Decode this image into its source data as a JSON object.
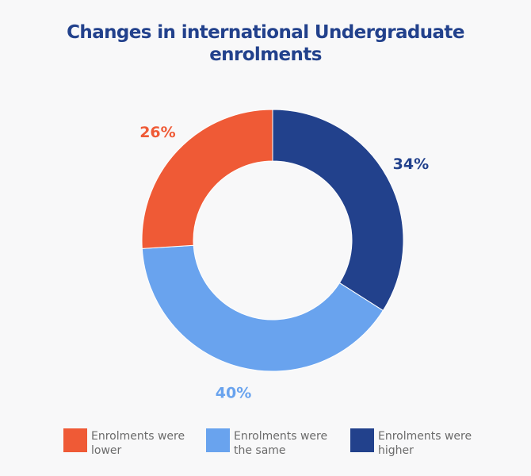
{
  "chart_data": {
    "type": "pie",
    "title": "Changes in international Undergraduate enrolments",
    "title_lines": [
      "Changes in international Undergraduate",
      "enrolments"
    ],
    "slices": [
      {
        "label": "Enrolments were higher",
        "legend_lines": "Enrolments were\nhigher",
        "value": 34,
        "display": "34%",
        "color": "#22418c"
      },
      {
        "label": "Enrolments were the same",
        "legend_lines": "Enrolments were\nthe same",
        "value": 40,
        "display": "40%",
        "color": "#69a3ee"
      },
      {
        "label": "Enrolments were lower",
        "legend_lines": "Enrolments were\nlower",
        "value": 26,
        "display": "26%",
        "color": "#ef5a36"
      }
    ],
    "legend_order": [
      "Enrolments were lower",
      "Enrolments were the same",
      "Enrolments were higher"
    ],
    "legend_position": "bottom",
    "donut": true,
    "start": "top-clockwise"
  },
  "colors": {
    "title": "#22418c",
    "background": "#f8f8f9",
    "legend_text": "#6b6b6b"
  }
}
